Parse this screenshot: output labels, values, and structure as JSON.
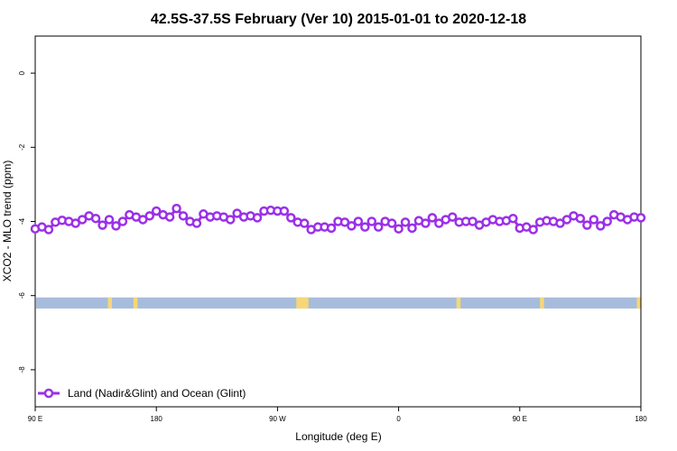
{
  "chart_data": {
    "type": "line",
    "title": "42.5S-37.5S February (Ver 10)   2015-01-01 to 2020-12-18",
    "xlabel": "Longitude (deg E)",
    "ylabel": "XCO2 - MLO trend (ppm)",
    "x_ticks": [
      {
        "value": 90,
        "label": "90 E"
      },
      {
        "value": 180,
        "label": "180"
      },
      {
        "value": 270,
        "label": "90 W"
      },
      {
        "value": 360,
        "label": "0"
      },
      {
        "value": 450,
        "label": "90 E"
      },
      {
        "value": 540,
        "label": "180"
      }
    ],
    "xlim": [
      90,
      540
    ],
    "ylim": [
      -9,
      1
    ],
    "y_ticks": [
      0,
      -2,
      -4,
      -6,
      -8
    ],
    "grid": false,
    "legend": {
      "position": "bottom-left",
      "entries": [
        "Land (Nadir&Glint) and Ocean (Glint)"
      ]
    },
    "series": [
      {
        "name": "Land (Nadir&Glint) and Ocean (Glint)",
        "color": "#9b30e8",
        "x": [
          90,
          95,
          100,
          105,
          110,
          115,
          120,
          125,
          130,
          135,
          140,
          145,
          150,
          155,
          160,
          165,
          170,
          175,
          180,
          185,
          190,
          195,
          200,
          205,
          210,
          215,
          220,
          225,
          230,
          235,
          240,
          245,
          250,
          255,
          260,
          265,
          270,
          275,
          280,
          285,
          290,
          295,
          300,
          305,
          310,
          315,
          320,
          325,
          330,
          335,
          340,
          345,
          350,
          355,
          360,
          365,
          370,
          375,
          380,
          385,
          390,
          395,
          400,
          405,
          410,
          415,
          420,
          425,
          430,
          435,
          440,
          445,
          450,
          455,
          460,
          465,
          470,
          475,
          480,
          485,
          490,
          495,
          500,
          505,
          510,
          515,
          520,
          525,
          530,
          535,
          540
        ],
        "values": [
          -4.2,
          -4.15,
          -4.22,
          -4.02,
          -3.97,
          -4.0,
          -4.05,
          -3.95,
          -3.85,
          -3.92,
          -4.1,
          -3.95,
          -4.12,
          -4.0,
          -3.82,
          -3.88,
          -3.95,
          -3.85,
          -3.72,
          -3.82,
          -3.88,
          -3.65,
          -3.85,
          -4.0,
          -4.05,
          -3.8,
          -3.88,
          -3.85,
          -3.88,
          -3.95,
          -3.78,
          -3.88,
          -3.85,
          -3.9,
          -3.72,
          -3.7,
          -3.72,
          -3.72,
          -3.9,
          -4.02,
          -4.05,
          -4.22,
          -4.15,
          -4.15,
          -4.18,
          -4.0,
          -4.02,
          -4.12,
          -4.0,
          -4.15,
          -4.0,
          -4.15,
          -4.0,
          -4.05,
          -4.2,
          -4.02,
          -4.18,
          -3.98,
          -4.05,
          -3.9,
          -4.05,
          -3.95,
          -3.88,
          -4.02,
          -4.0,
          -4.0,
          -4.1,
          -4.02,
          -3.95,
          -4.0,
          -3.98,
          -3.92,
          -4.18,
          -4.15,
          -4.22,
          -4.02,
          -3.98,
          -4.0,
          -4.05,
          -3.95,
          -3.85,
          -3.92,
          -4.1,
          -3.95,
          -4.12,
          -4.0,
          -3.82,
          -3.88,
          -3.95,
          -3.88,
          -3.9
        ]
      }
    ],
    "land_ocean_band": {
      "y_range": [
        -6.35,
        -6.05
      ],
      "ocean_color": "#a7bcdc",
      "land_color": "#f5d778",
      "land_spans": [
        [
          144,
          147
        ],
        [
          163,
          166
        ],
        [
          284,
          293
        ],
        [
          403,
          406
        ],
        [
          465,
          468
        ],
        [
          537,
          540
        ]
      ]
    }
  }
}
